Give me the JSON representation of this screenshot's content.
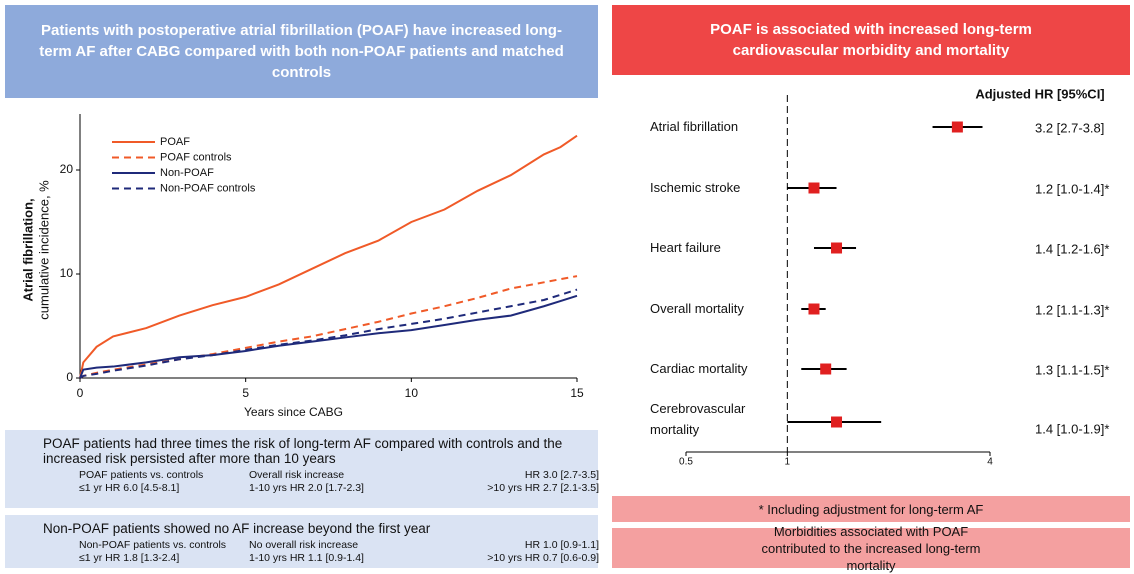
{
  "chart_data": [
    {
      "type": "line",
      "ylabel": "Atrial fibrillation,",
      "ylabel2": "cumulative incidence, %",
      "xlabel": "Years since CABG",
      "x": [
        0,
        0.1,
        0.5,
        1,
        2,
        3,
        4,
        5,
        6,
        7,
        8,
        9,
        10,
        11,
        12,
        13,
        14,
        14.5,
        15
      ],
      "series": [
        {
          "name": "POAF",
          "color": "#f05a28",
          "dash": false,
          "values": [
            0,
            1.5,
            3,
            4,
            4.8,
            6,
            7,
            7.8,
            9,
            10.5,
            12,
            13.2,
            15,
            16.2,
            18,
            19.5,
            21.5,
            22.2,
            23.3
          ]
        },
        {
          "name": "POAF controls",
          "color": "#f05a28",
          "dash": true,
          "values": [
            0,
            0.2,
            0.5,
            0.8,
            1.3,
            1.8,
            2.3,
            2.9,
            3.5,
            4.0,
            4.7,
            5.4,
            6.2,
            6.9,
            7.7,
            8.6,
            9.2,
            9.5,
            9.8
          ]
        },
        {
          "name": "Non-POAF",
          "color": "#1f2a7a",
          "dash": false,
          "values": [
            0,
            0.8,
            1.0,
            1.1,
            1.5,
            2.0,
            2.2,
            2.6,
            3.1,
            3.5,
            3.9,
            4.3,
            4.6,
            5.1,
            5.6,
            6.0,
            6.9,
            7.4,
            7.9
          ]
        },
        {
          "name": "Non-POAF controls",
          "color": "#1f2a7a",
          "dash": true,
          "values": [
            0,
            0.2,
            0.4,
            0.7,
            1.2,
            1.8,
            2.2,
            2.7,
            3.2,
            3.6,
            4.1,
            4.7,
            5.2,
            5.7,
            6.3,
            6.9,
            7.5,
            8.0,
            8.5
          ]
        }
      ],
      "xlim": [
        0,
        15
      ],
      "xticks": [
        0,
        5,
        10,
        15
      ],
      "ylim": [
        0,
        25
      ],
      "yticks": [
        0,
        10,
        20
      ]
    },
    {
      "type": "forest",
      "column_title": "Adjusted HR [95%CI]",
      "categories": [
        "Atrial fibrillation",
        "Ischemic stroke",
        "Heart failure",
        "Overall mortality",
        "Cardiac mortality",
        "Cerebrovascular mortality"
      ],
      "values": [
        3.2,
        1.2,
        1.4,
        1.2,
        1.3,
        1.4
      ],
      "ci_low": [
        2.7,
        1.0,
        1.2,
        1.1,
        1.1,
        1.0
      ],
      "ci_high": [
        3.8,
        1.4,
        1.6,
        1.3,
        1.5,
        1.9
      ],
      "value_labels": [
        "3.2 [2.7-3.8]",
        "1.2 [1.0-1.4]*",
        "1.4 [1.2-1.6]*",
        "1.2 [1.1-1.3]*",
        "1.3 [1.1-1.5]*",
        "1.4 [1.0-1.9]*"
      ],
      "color": "#e02020",
      "log": true,
      "reference": 1,
      "xlim": [
        0.5,
        4
      ],
      "xticks": [
        0.5,
        1,
        4
      ]
    }
  ],
  "left": {
    "title": "Patients with postoperative atrial fibrillation (POAF) have increased long-term AF after CABG compared with both non-POAF patients and matched controls",
    "boxes": [
      {
        "text": "POAF patients had three times the risk of long-term AF compared with controls and the increased risk persisted after more than 10 years",
        "cells": [
          "POAF patients vs. controls",
          "Overall risk increase",
          "HR 3.0 [2.7-3.5]",
          "≤1 yr HR 6.0 [4.5-8.1]",
          "1-10 yrs HR 2.0 [1.7-2.3]",
          ">10 yrs HR 2.7 [2.1-3.5]"
        ]
      },
      {
        "text": "Non-POAF patients showed no AF increase beyond the first year",
        "cells": [
          "Non-POAF patients vs. controls",
          "No overall risk increase",
          "HR 1.0 [0.9-1.1]",
          "≤1 yr HR 1.8 [1.3-2.4]",
          "1-10 yrs HR 1.1 [0.9-1.4]",
          ">10 yrs HR 0.7 [0.6-0.9]"
        ]
      }
    ]
  },
  "right": {
    "title": "POAF is associated with increased long-term cardiovascular morbidity and mortality",
    "footnote": "* Including adjustment for long-term AF",
    "conclusion": "Morbidities associated with POAF contributed to the increased long-term mortality"
  }
}
